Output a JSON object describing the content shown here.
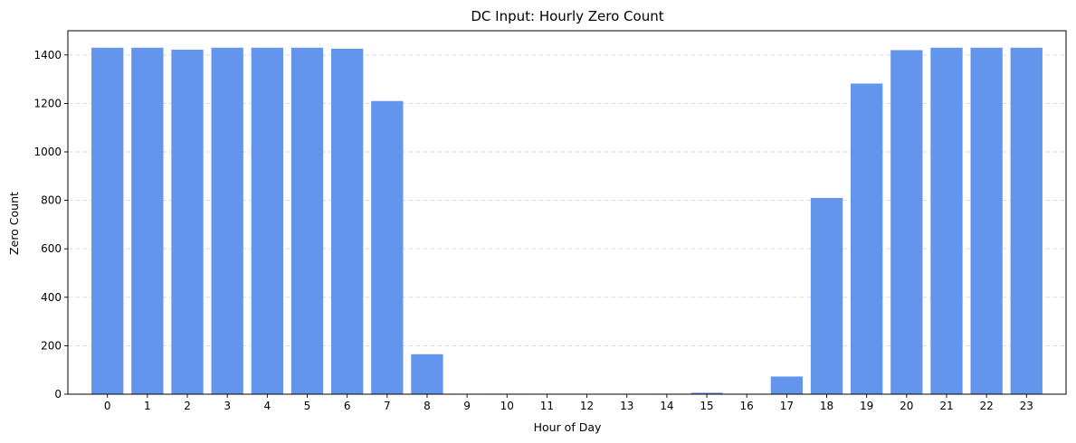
{
  "chart_data": {
    "type": "bar",
    "title": "DC Input: Hourly Zero Count",
    "xlabel": "Hour of Day",
    "ylabel": "Zero Count",
    "categories": [
      "0",
      "1",
      "2",
      "3",
      "4",
      "5",
      "6",
      "7",
      "8",
      "9",
      "10",
      "11",
      "12",
      "13",
      "14",
      "15",
      "16",
      "17",
      "18",
      "19",
      "20",
      "21",
      "22",
      "23"
    ],
    "values": [
      1430,
      1430,
      1422,
      1430,
      1430,
      1430,
      1426,
      1210,
      165,
      0,
      2,
      0,
      0,
      0,
      2,
      6,
      2,
      73,
      810,
      1282,
      1420,
      1430,
      1430,
      1430
    ],
    "ylim": [
      0,
      1500
    ],
    "yticks": [
      0,
      200,
      400,
      600,
      800,
      1000,
      1200,
      1400
    ],
    "grid": "y-dashed",
    "bar_color": "#6495ED",
    "legend": "none"
  }
}
